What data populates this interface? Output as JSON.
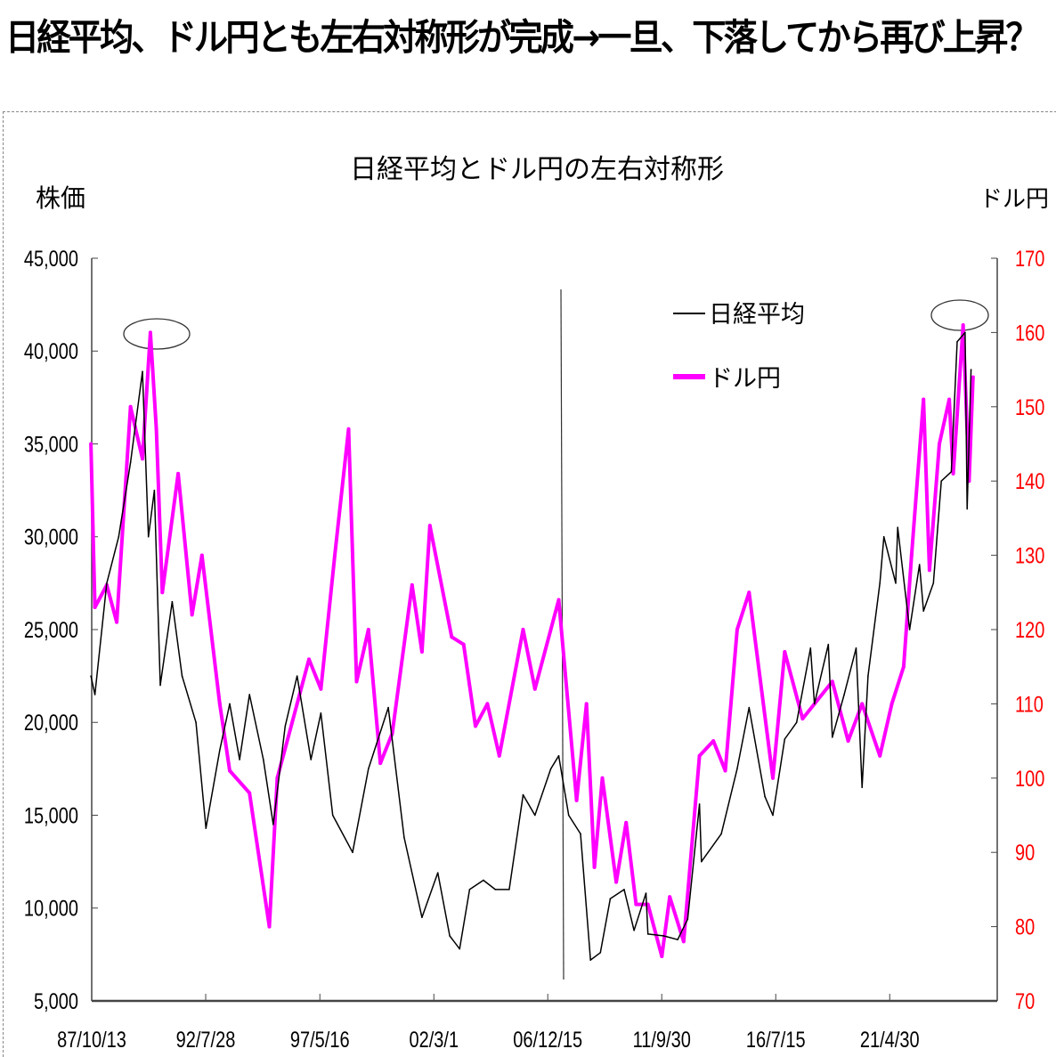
{
  "headline": "日経平均、ドル円とも左右対称形が完成→一旦、下落してから再び上昇？",
  "chart_data": {
    "type": "line",
    "title": "日経平均とドル円の左右対称形",
    "ylabel_left": "株価",
    "ylabel_right": "ドル円",
    "legend_position": "top-center",
    "grid": false,
    "x_ticks": [
      "87/10/13",
      "92/7/28",
      "97/5/16",
      "02/3/1",
      "06/12/15",
      "11/9/30",
      "16/7/15",
      "21/4/30"
    ],
    "x_tick_dates": [
      "1987-10-13",
      "1992-07-28",
      "1997-05-16",
      "2002-03-01",
      "2006-12-15",
      "2011-09-30",
      "2016-07-15",
      "2021-04-30"
    ],
    "y_left": {
      "lim": [
        5000,
        45000
      ],
      "ticks": [
        "5,000",
        "10,000",
        "15,000",
        "20,000",
        "25,000",
        "30,000",
        "35,000",
        "40,000",
        "45,000"
      ]
    },
    "y_right": {
      "lim": [
        70,
        170
      ],
      "ticks": [
        "70",
        "80",
        "90",
        "100",
        "110",
        "120",
        "130",
        "140",
        "150",
        "160",
        "170"
      ],
      "color": "#ff0000"
    },
    "series": [
      {
        "name": "日経平均",
        "axis": "left",
        "color": "#000000",
        "x": [
          "1987-10",
          "1987-12",
          "1988-06",
          "1988-12",
          "1989-06",
          "1989-12",
          "1990-03",
          "1990-06",
          "1990-09",
          "1991-03",
          "1991-08",
          "1992-03",
          "1992-08",
          "1993-03",
          "1993-08",
          "1994-01",
          "1994-06",
          "1995-01",
          "1995-06",
          "1995-12",
          "1996-06",
          "1997-01",
          "1997-06",
          "1997-12",
          "1998-10",
          "1999-06",
          "2000-04",
          "2000-12",
          "2001-09",
          "2002-05",
          "2002-11",
          "2003-04",
          "2003-09",
          "2004-04",
          "2004-10",
          "2005-05",
          "2005-12",
          "2006-06",
          "2007-02",
          "2007-06",
          "2007-11",
          "2008-05",
          "2008-10",
          "2009-03",
          "2009-08",
          "2010-03",
          "2010-08",
          "2011-02",
          "2011-03",
          "2011-11",
          "2012-06",
          "2012-11",
          "2013-05",
          "2013-06",
          "2014-04",
          "2014-12",
          "2015-06",
          "2016-02",
          "2016-06",
          "2016-12",
          "2017-06",
          "2018-01",
          "2018-03",
          "2018-10",
          "2018-12",
          "2019-06",
          "2019-12",
          "2020-03",
          "2020-06",
          "2020-12",
          "2021-02",
          "2021-08",
          "2021-09",
          "2022-03",
          "2022-08",
          "2022-10",
          "2023-03",
          "2023-07",
          "2023-12",
          "2024-03",
          "2024-07",
          "2024-08",
          "2024-10"
        ],
        "values": [
          22500,
          21500,
          27500,
          30000,
          34000,
          38900,
          30000,
          32500,
          22000,
          26500,
          22500,
          20000,
          14300,
          18500,
          21000,
          18000,
          21500,
          18000,
          14500,
          19800,
          22500,
          18000,
          20500,
          15000,
          13000,
          17500,
          20800,
          13800,
          9500,
          11900,
          8500,
          7800,
          11000,
          11500,
          11000,
          11000,
          16100,
          15000,
          17500,
          18200,
          15000,
          14000,
          7200,
          7600,
          10500,
          11000,
          8800,
          10800,
          8600,
          8500,
          8300,
          9400,
          15600,
          12500,
          14000,
          17500,
          20800,
          16000,
          15000,
          19100,
          20000,
          24000,
          21000,
          24200,
          19200,
          21500,
          24000,
          16500,
          22500,
          27500,
          30000,
          27500,
          30500,
          25000,
          28500,
          26000,
          27500,
          33000,
          33500,
          40500,
          41000,
          31500,
          39000
        ]
      },
      {
        "name": "ドル円",
        "axis": "right",
        "color": "#ff00ff",
        "x": [
          "1987-10",
          "1987-12",
          "1988-06",
          "1988-11",
          "1989-06",
          "1989-12",
          "1990-04",
          "1990-07",
          "1990-10",
          "1991-06",
          "1992-01",
          "1992-06",
          "1993-03",
          "1993-08",
          "1994-06",
          "1995-04",
          "1995-08",
          "1996-06",
          "1996-12",
          "1997-06",
          "1998-01",
          "1998-08",
          "1998-12",
          "1999-06",
          "1999-12",
          "2000-06",
          "2001-04",
          "2001-09",
          "2002-01",
          "2002-12",
          "2003-06",
          "2003-12",
          "2004-06",
          "2004-12",
          "2005-12",
          "2006-06",
          "2007-06",
          "2007-09",
          "2008-03",
          "2008-08",
          "2008-12",
          "2009-04",
          "2009-11",
          "2010-04",
          "2010-09",
          "2011-03",
          "2011-10",
          "2012-02",
          "2012-09",
          "2013-05",
          "2013-12",
          "2014-06",
          "2014-12",
          "2015-06",
          "2016-06",
          "2016-12",
          "2017-09",
          "2018-12",
          "2019-08",
          "2020-03",
          "2020-12",
          "2021-06",
          "2021-12",
          "2022-04",
          "2022-10",
          "2023-01",
          "2023-06",
          "2023-11",
          "2024-01",
          "2024-06",
          "2024-09",
          "2024-11"
        ],
        "values": [
          145,
          123,
          126,
          121,
          150,
          143,
          160,
          147,
          125,
          141,
          122,
          130,
          110,
          101,
          98,
          80,
          100,
          110,
          116,
          112,
          130,
          147,
          113,
          120,
          102,
          106,
          126,
          117,
          134,
          119,
          118,
          107,
          110,
          103,
          120,
          112,
          124,
          115,
          97,
          110,
          88,
          100,
          86,
          94,
          83,
          83,
          76,
          84,
          78,
          103,
          105,
          101,
          120,
          125,
          100,
          117,
          108,
          113,
          105,
          110,
          103,
          110,
          115,
          130,
          151,
          128,
          145,
          151,
          141,
          161,
          140,
          154
        ]
      }
    ],
    "annotations": [
      "ellipse around 1990 peak",
      "ellipse around 2024 peak",
      "vertical divider line near 2007"
    ]
  }
}
